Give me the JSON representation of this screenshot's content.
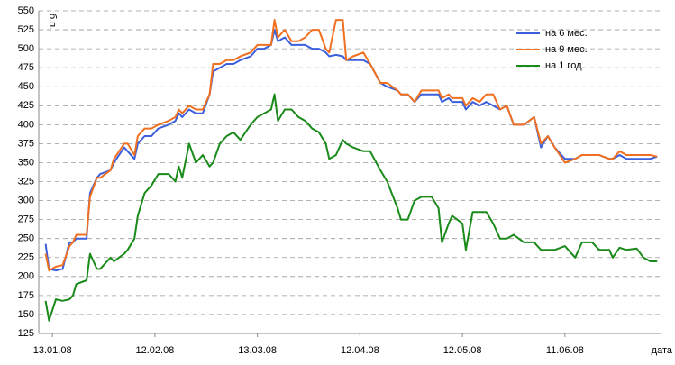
{
  "chart_data": {
    "type": "line",
    "x_label": "дата",
    "y_label": "б.п.",
    "x": [
      "11.01.08",
      "12.01.08",
      "14.01.08",
      "16.01.08",
      "18.01.08",
      "19.01.08",
      "20.01.08",
      "23.01.08",
      "24.01.08",
      "26.01.08",
      "27.01.08",
      "30.01.08",
      "31.01.08",
      "03.02.08",
      "04.02.08",
      "06.02.08",
      "07.02.08",
      "09.02.08",
      "11.02.08",
      "13.02.08",
      "16.02.08",
      "18.02.08",
      "19.02.08",
      "20.02.08",
      "22.02.08",
      "24.02.08",
      "26.02.08",
      "28.02.08",
      "29.02.08",
      "02.03.08",
      "04.03.08",
      "06.03.08",
      "08.03.08",
      "11.03.08",
      "13.03.08",
      "15.03.08",
      "17.03.08",
      "18.03.08",
      "19.03.08",
      "21.03.08",
      "23.03.08",
      "25.03.08",
      "27.03.08",
      "29.03.08",
      "31.03.08",
      "02.04.08",
      "03.04.08",
      "05.04.08",
      "07.04.08",
      "08.04.08",
      "10.04.08",
      "13.04.08",
      "15.04.08",
      "18.04.08",
      "20.04.08",
      "23.04.08",
      "24.04.08",
      "26.04.08",
      "28.04.08",
      "30.04.08",
      "03.05.08",
      "05.05.08",
      "06.05.08",
      "08.05.08",
      "09.05.08",
      "12.05.08",
      "13.05.08",
      "15.05.08",
      "17.05.08",
      "19.05.08",
      "21.05.08",
      "23.05.08",
      "25.05.08",
      "27.05.08",
      "30.05.08",
      "02.06.08",
      "04.06.08",
      "06.06.08",
      "08.06.08",
      "11.06.08",
      "14.06.08",
      "16.06.08",
      "19.06.08",
      "21.06.08",
      "24.06.08",
      "25.06.08",
      "27.06.08",
      "29.06.08",
      "02.07.08",
      "04.07.08",
      "06.07.08",
      "08.07.08"
    ],
    "series": [
      {
        "name": "на 6 мес.",
        "color": "#3c5fdc",
        "values": [
          243,
          210,
          208,
          210,
          245,
          245,
          250,
          250,
          310,
          330,
          335,
          340,
          350,
          370,
          365,
          355,
          375,
          385,
          385,
          395,
          400,
          405,
          415,
          410,
          420,
          415,
          415,
          440,
          470,
          475,
          480,
          480,
          485,
          490,
          500,
          500,
          505,
          525,
          510,
          515,
          505,
          505,
          505,
          500,
          500,
          495,
          490,
          492,
          490,
          485,
          485,
          485,
          480,
          455,
          450,
          445,
          440,
          440,
          430,
          440,
          440,
          440,
          430,
          435,
          430,
          430,
          420,
          430,
          425,
          430,
          425,
          420,
          425,
          400,
          400,
          410,
          370,
          385,
          370,
          355,
          355,
          360,
          360,
          360,
          355,
          355,
          360,
          355,
          355,
          355,
          355,
          358
        ]
      },
      {
        "name": "на 9 мес.",
        "color": "#f07020",
        "values": [
          230,
          208,
          213,
          215,
          240,
          245,
          255,
          255,
          305,
          330,
          330,
          340,
          355,
          375,
          375,
          360,
          385,
          395,
          395,
          400,
          405,
          410,
          420,
          415,
          425,
          420,
          420,
          440,
          480,
          480,
          485,
          485,
          490,
          495,
          505,
          505,
          505,
          538,
          515,
          525,
          510,
          510,
          515,
          525,
          525,
          500,
          495,
          538,
          538,
          485,
          490,
          495,
          480,
          455,
          455,
          445,
          440,
          440,
          430,
          445,
          445,
          445,
          435,
          440,
          435,
          435,
          425,
          435,
          430,
          440,
          440,
          420,
          425,
          400,
          400,
          410,
          375,
          385,
          370,
          350,
          355,
          360,
          360,
          360,
          355,
          355,
          365,
          360,
          360,
          360,
          360,
          358
        ]
      },
      {
        "name": "на 1 год",
        "color": "#1a8a1a",
        "values": [
          168,
          142,
          170,
          168,
          170,
          175,
          190,
          195,
          230,
          210,
          210,
          225,
          220,
          230,
          235,
          250,
          280,
          310,
          320,
          335,
          335,
          325,
          345,
          330,
          375,
          350,
          360,
          345,
          350,
          375,
          385,
          390,
          380,
          400,
          410,
          415,
          420,
          440,
          405,
          420,
          420,
          410,
          405,
          395,
          390,
          375,
          355,
          360,
          380,
          375,
          370,
          365,
          365,
          340,
          325,
          290,
          275,
          275,
          300,
          305,
          305,
          290,
          245,
          270,
          280,
          270,
          235,
          285,
          285,
          285,
          270,
          250,
          250,
          255,
          245,
          245,
          235,
          235,
          235,
          240,
          225,
          245,
          245,
          235,
          235,
          225,
          238,
          235,
          237,
          225,
          220,
          220
        ]
      }
    ],
    "xlim": [
      "09.01.08",
      "09.07.08"
    ],
    "xticks": [
      "13.01.08",
      "12.02.08",
      "13.03.08",
      "12.04.08",
      "12.05.08",
      "11.06.08"
    ],
    "ylim": [
      125,
      550
    ],
    "yticks": [
      125,
      150,
      175,
      200,
      225,
      250,
      275,
      300,
      325,
      350,
      375,
      400,
      425,
      450,
      475,
      500,
      525,
      550
    ],
    "grid": true,
    "legend": "upper right"
  }
}
